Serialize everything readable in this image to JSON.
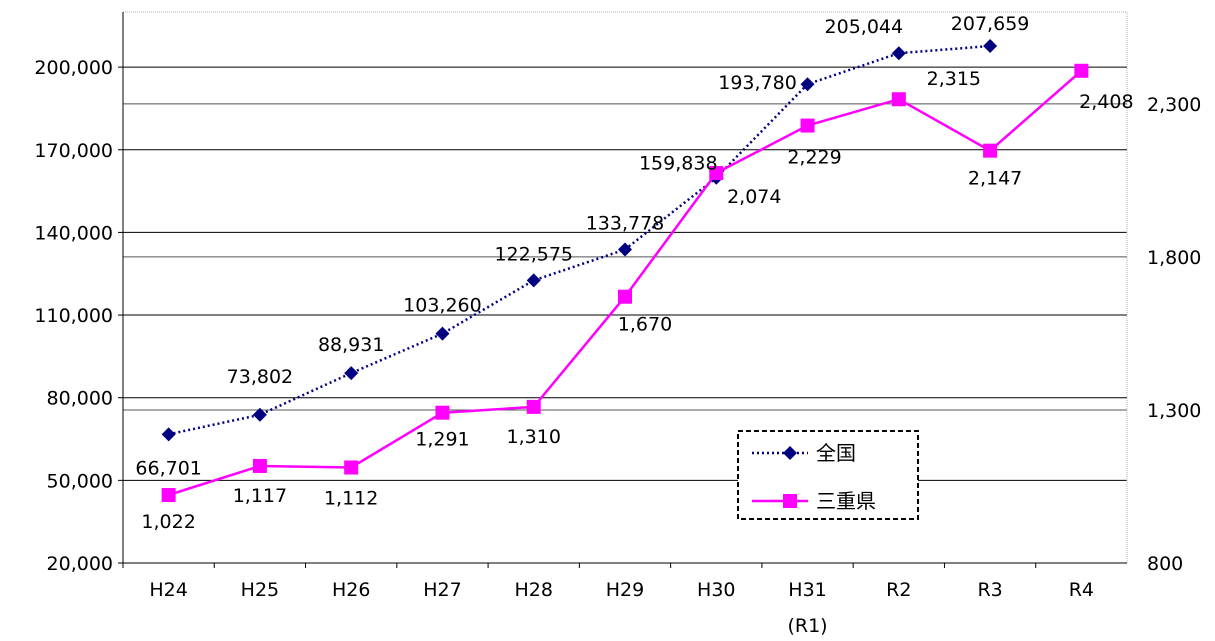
{
  "chart_data": {
    "type": "line",
    "categories": [
      "H24",
      "H25",
      "H26",
      "H27",
      "H28",
      "H29",
      "H30",
      "H31",
      "R2",
      "R3",
      "R4"
    ],
    "category_sublabels": [
      "",
      "",
      "",
      "",
      "",
      "",
      "",
      "(R1)",
      "",
      "",
      ""
    ],
    "left_axis": {
      "ylim": [
        20000,
        220000
      ],
      "ticks": [
        20000,
        50000,
        80000,
        110000,
        140000,
        170000,
        200000
      ],
      "tick_labels": [
        "20,000",
        "50,000",
        "80,000",
        "110,000",
        "140,000",
        "170,000",
        "200,000"
      ]
    },
    "right_axis": {
      "ylim": [
        800,
        2600
      ],
      "ticks": [
        800,
        1300,
        1800,
        2300
      ],
      "tick_labels": [
        "800",
        "1,300",
        "1,800",
        "2,300"
      ]
    },
    "series": [
      {
        "name": "全国",
        "axis": "left",
        "color": "#000080",
        "line_style": "dotted",
        "marker": "diamond",
        "values": [
          66701,
          73802,
          88931,
          103260,
          122575,
          133778,
          159838,
          193780,
          205044,
          207659,
          null
        ],
        "labels": [
          "66,701",
          "73,802",
          "88,931",
          "103,260",
          "122,575",
          "133,778",
          "159,838",
          "193,780",
          "205,044",
          "207,659",
          ""
        ]
      },
      {
        "name": "三重県",
        "axis": "right",
        "color": "#FF00FF",
        "line_style": "solid",
        "marker": "square",
        "values": [
          1022,
          1117,
          1112,
          1291,
          1310,
          1670,
          2074,
          2229,
          2315,
          2147,
          2408
        ],
        "labels": [
          "1,022",
          "1,117",
          "1,112",
          "1,291",
          "1,310",
          "1,670",
          "2,074",
          "2,229",
          "2,315",
          "2,147",
          "2,408"
        ]
      }
    ],
    "grid": true,
    "legend": {
      "placement": "bottom-right-inside"
    }
  }
}
